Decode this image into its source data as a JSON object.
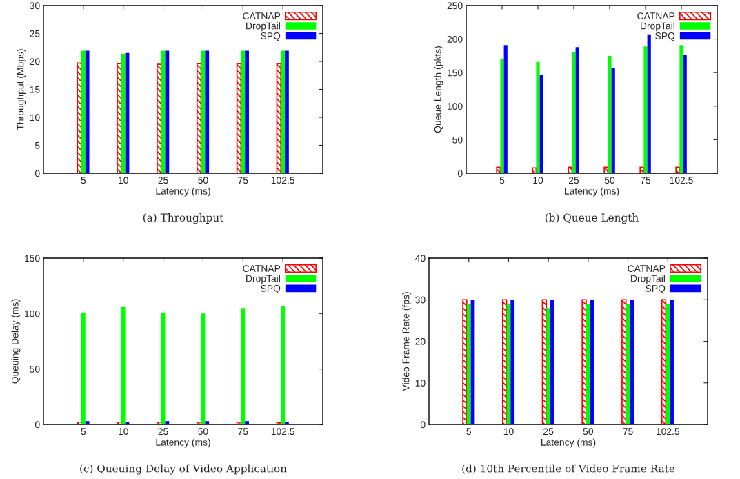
{
  "chart_data": [
    {
      "type": "bar",
      "title": "(a) Throughput",
      "xlabel": "Latency (ms)",
      "ylabel": "Throughput (Mbps)",
      "categories": [
        "5",
        "10",
        "25",
        "50",
        "75",
        "102.5"
      ],
      "ylim": [
        0,
        30
      ],
      "yticks": [
        0,
        5,
        10,
        15,
        20,
        25,
        30
      ],
      "legend": "top right",
      "grid": false,
      "series": [
        {
          "name": "CATNAP",
          "color": "#ff0000",
          "values": [
            19.7,
            19.6,
            19.5,
            19.6,
            19.6,
            19.6
          ]
        },
        {
          "name": "DropTail",
          "color": "#00ff00",
          "values": [
            21.9,
            21.4,
            21.9,
            21.9,
            21.9,
            21.9
          ]
        },
        {
          "name": "SPQ",
          "color": "#0000ff",
          "values": [
            21.9,
            21.5,
            21.9,
            21.9,
            21.9,
            21.9
          ]
        }
      ]
    },
    {
      "type": "bar",
      "title": "(b) Queue Length",
      "xlabel": "Latency (ms)",
      "ylabel": "Queue Length (pkts)",
      "categories": [
        "5",
        "10",
        "25",
        "50",
        "75",
        "102.5"
      ],
      "ylim": [
        0,
        250
      ],
      "yticks": [
        0,
        50,
        100,
        150,
        200,
        250
      ],
      "legend": "top right",
      "grid": false,
      "series": [
        {
          "name": "CATNAP",
          "color": "#ff0000",
          "values": [
            9,
            8,
            9,
            9,
            9,
            9
          ]
        },
        {
          "name": "DropTail",
          "color": "#00ff00",
          "values": [
            171,
            166,
            180,
            175,
            189,
            191
          ]
        },
        {
          "name": "SPQ",
          "color": "#0000ff",
          "values": [
            191,
            147,
            188,
            157,
            207,
            176
          ]
        }
      ]
    },
    {
      "type": "bar",
      "title": "(c) Queuing Delay of Video Application",
      "xlabel": "Latency (ms)",
      "ylabel": "Queuing Delay (ms)",
      "categories": [
        "5",
        "10",
        "25",
        "50",
        "75",
        "102.5"
      ],
      "ylim": [
        0,
        150
      ],
      "yticks": [
        0,
        50,
        100,
        150
      ],
      "legend": "top right",
      "grid": false,
      "series": [
        {
          "name": "CATNAP",
          "color": "#ff0000",
          "values": [
            2,
            2,
            2,
            2,
            2,
            1.5
          ]
        },
        {
          "name": "DropTail",
          "color": "#00ff00",
          "values": [
            101,
            106,
            101,
            100,
            105,
            107
          ]
        },
        {
          "name": "SPQ",
          "color": "#0000ff",
          "values": [
            3,
            2,
            3,
            3,
            3,
            2.5
          ]
        }
      ]
    },
    {
      "type": "bar",
      "title": "(d) 10th Percentile of Video Frame Rate",
      "xlabel": "Latency (ms)",
      "ylabel": "Video Frame Rate (fps)",
      "categories": [
        "5",
        "10",
        "25",
        "50",
        "75",
        "102.5"
      ],
      "ylim": [
        0,
        40
      ],
      "yticks": [
        0,
        10,
        20,
        30,
        40
      ],
      "legend": "top right",
      "grid": false,
      "series": [
        {
          "name": "CATNAP",
          "color": "#ff0000",
          "values": [
            30,
            30,
            30,
            30,
            30,
            30
          ]
        },
        {
          "name": "DropTail",
          "color": "#00ff00",
          "values": [
            29,
            29,
            28,
            29,
            29,
            29
          ]
        },
        {
          "name": "SPQ",
          "color": "#0000ff",
          "values": [
            30,
            30,
            30,
            30,
            30,
            30
          ]
        }
      ]
    }
  ]
}
